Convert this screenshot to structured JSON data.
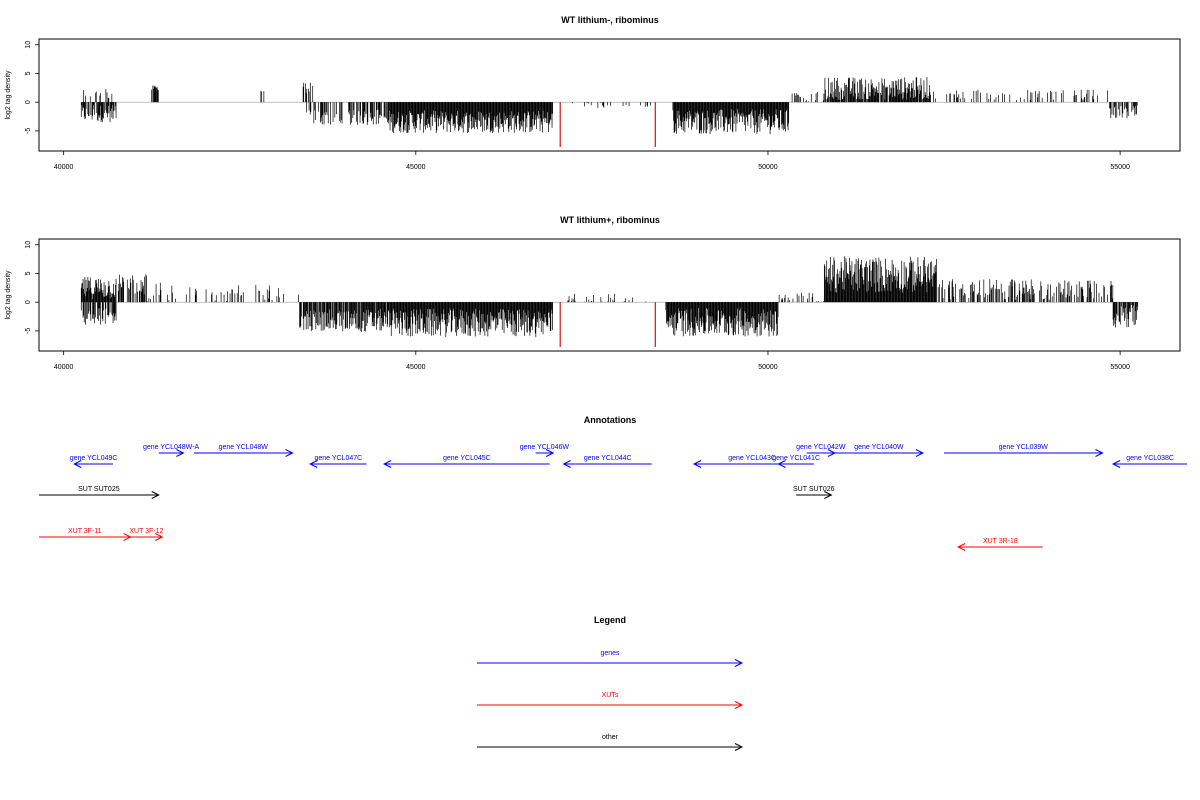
{
  "chart_data": [
    {
      "type": "bar",
      "title": "WT lithium-, ribominus",
      "ylabel": "log2 tag density",
      "xlabel": "",
      "xlim": [
        39650,
        55850
      ],
      "ylim": [
        -8.5,
        11
      ],
      "x_ticks": [
        "40000",
        "45000",
        "50000",
        "55000"
      ],
      "y_ticks": [
        "-5",
        "0",
        "5",
        "10"
      ],
      "series": [
        {
          "color": "#000000",
          "segments": [
            {
              "x0": 40250,
              "x1": 40750,
              "mean": -2.0,
              "amp": 1.5,
              "density": 0.8
            },
            {
              "x0": 40250,
              "x1": 40700,
              "mean": 1.5,
              "amp": 1.0,
              "density": 0.3
            },
            {
              "x0": 41250,
              "x1": 41350,
              "mean": 2.5,
              "amp": 0.4,
              "density": 0.8
            },
            {
              "x0": 42800,
              "x1": 42850,
              "mean": 2.0,
              "amp": 0.5,
              "density": 0.5
            },
            {
              "x0": 43400,
              "x1": 43550,
              "mean": 2.5,
              "amp": 1.0,
              "density": 0.5
            },
            {
              "x0": 43450,
              "x1": 44600,
              "mean": -2.6,
              "amp": 1.4,
              "density": 0.5
            },
            {
              "x0": 44600,
              "x1": 46950,
              "mean": -3.4,
              "amp": 2.0,
              "density": 1.0
            },
            {
              "x0": 47150,
              "x1": 48350,
              "mean": -0.6,
              "amp": 0.5,
              "density": 0.15
            },
            {
              "x0": 48650,
              "x1": 50300,
              "mean": -3.4,
              "amp": 2.2,
              "density": 1.0
            },
            {
              "x0": 50300,
              "x1": 50800,
              "mean": 0.8,
              "amp": 1.0,
              "density": 0.3
            },
            {
              "x0": 50800,
              "x1": 52300,
              "mean": 2.4,
              "amp": 2.0,
              "density": 0.9
            },
            {
              "x0": 52300,
              "x1": 54850,
              "mean": 1.3,
              "amp": 0.9,
              "density": 0.2
            },
            {
              "x0": 54850,
              "x1": 55250,
              "mean": -1.8,
              "amp": 1.2,
              "density": 0.6
            }
          ]
        },
        {
          "color": "#cc0000",
          "spikes": [
            {
              "x": 47050,
              "y": -7.8
            },
            {
              "x": 48400,
              "y": -7.8
            }
          ]
        }
      ]
    },
    {
      "type": "bar",
      "title": "WT lithium+, ribominus",
      "ylabel": "log2 tag density",
      "xlabel": "",
      "xlim": [
        39650,
        55850
      ],
      "ylim": [
        -8.5,
        11
      ],
      "x_ticks": [
        "40000",
        "45000",
        "50000",
        "55000"
      ],
      "y_ticks": [
        "-5",
        "0",
        "5",
        "10"
      ],
      "series": [
        {
          "color": "#000000",
          "segments": [
            {
              "x0": 40250,
              "x1": 40750,
              "mean": 2.5,
              "amp": 2.0,
              "density": 1.0
            },
            {
              "x0": 40250,
              "x1": 40750,
              "mean": -2.5,
              "amp": 1.5,
              "density": 0.8
            },
            {
              "x0": 40750,
              "x1": 41400,
              "mean": 2.5,
              "amp": 2.5,
              "density": 0.5
            },
            {
              "x0": 41400,
              "x1": 43350,
              "mean": 1.5,
              "amp": 1.5,
              "density": 0.2
            },
            {
              "x0": 43350,
              "x1": 44600,
              "mean": -3.2,
              "amp": 2.0,
              "density": 0.9
            },
            {
              "x0": 44600,
              "x1": 46950,
              "mean": -3.6,
              "amp": 2.5,
              "density": 1.0
            },
            {
              "x0": 47150,
              "x1": 48350,
              "mean": 0.5,
              "amp": 1.0,
              "density": 0.2
            },
            {
              "x0": 48550,
              "x1": 50150,
              "mean": -3.5,
              "amp": 2.5,
              "density": 1.0
            },
            {
              "x0": 50150,
              "x1": 50800,
              "mean": 0.5,
              "amp": 1.2,
              "density": 0.3
            },
            {
              "x0": 50800,
              "x1": 52400,
              "mean": 4.8,
              "amp": 3.2,
              "density": 1.0
            },
            {
              "x0": 52400,
              "x1": 54900,
              "mean": 2.2,
              "amp": 1.8,
              "density": 0.5
            },
            {
              "x0": 54900,
              "x1": 55250,
              "mean": -2.5,
              "amp": 2.0,
              "density": 0.8
            }
          ]
        },
        {
          "color": "#cc0000",
          "spikes": [
            {
              "x": 47050,
              "y": -7.8
            },
            {
              "x": 48400,
              "y": -7.8
            }
          ]
        }
      ]
    }
  ],
  "annotations": {
    "title": "Annotations",
    "genes": [
      {
        "label": "gene YCL049C",
        "start": 40150,
        "end": 40700,
        "strand": "-",
        "color": "#0000ff",
        "track": 1
      },
      {
        "label": "gene YCL048W-A",
        "start": 41350,
        "end": 41700,
        "strand": "+",
        "color": "#0000ff",
        "track": 0
      },
      {
        "label": "gene YCL048W",
        "start": 41850,
        "end": 43250,
        "strand": "+",
        "color": "#0000ff",
        "track": 0
      },
      {
        "label": "gene YCL047C",
        "start": 43500,
        "end": 44300,
        "strand": "-",
        "color": "#0000ff",
        "track": 1
      },
      {
        "label": "gene YCL045C",
        "start": 44550,
        "end": 46900,
        "strand": "-",
        "color": "#0000ff",
        "track": 1
      },
      {
        "label": "gene YCL046W",
        "start": 46700,
        "end": 46950,
        "strand": "+",
        "color": "#0000ff",
        "track": 0
      },
      {
        "label": "gene YCL044C",
        "start": 47100,
        "end": 48350,
        "strand": "-",
        "color": "#0000ff",
        "track": 1
      },
      {
        "label": "gene YCL043C",
        "start": 48950,
        "end": 50600,
        "strand": "-",
        "color": "#0000ff",
        "track": 1
      },
      {
        "label": "gene YCL041C",
        "start": 50150,
        "end": 50650,
        "strand": "-",
        "color": "#0000ff",
        "track": 1
      },
      {
        "label": "gene YCL042W",
        "start": 50550,
        "end": 50950,
        "strand": "+",
        "color": "#0000ff",
        "track": 0
      },
      {
        "label": "gene YCL040W",
        "start": 50950,
        "end": 52200,
        "strand": "+",
        "color": "#0000ff",
        "track": 0
      },
      {
        "label": "gene YCL039W",
        "start": 52500,
        "end": 54750,
        "strand": "+",
        "color": "#0000ff",
        "track": 0
      },
      {
        "label": "gene YCL038C",
        "start": 54900,
        "end": 55950,
        "strand": "-",
        "color": "#0000ff",
        "track": 1
      }
    ],
    "other": [
      {
        "label": "SUT SUT025",
        "start": 39650,
        "end": 41350,
        "strand": "+",
        "color": "#000000",
        "track": 2
      },
      {
        "label": "SUT SUT026",
        "start": 50400,
        "end": 50900,
        "strand": "+",
        "color": "#000000",
        "track": 2
      }
    ],
    "xuts": [
      {
        "label": "XUT 3F-11",
        "start": 39650,
        "end": 40950,
        "strand": "+",
        "color": "#ff0000",
        "track": 3
      },
      {
        "label": "XUT 3F-12",
        "start": 40950,
        "end": 41400,
        "strand": "+",
        "color": "#ff0000",
        "track": 3
      },
      {
        "label": "XUT 3R-18",
        "start": 52700,
        "end": 53900,
        "strand": "-",
        "color": "#ff0000",
        "track": 4
      }
    ]
  },
  "legend": {
    "title": "Legend",
    "items": [
      {
        "label": "genes",
        "color": "#0000ff"
      },
      {
        "label": "XUTs",
        "color": "#ff0000"
      },
      {
        "label": "other",
        "color": "#000000"
      }
    ]
  }
}
